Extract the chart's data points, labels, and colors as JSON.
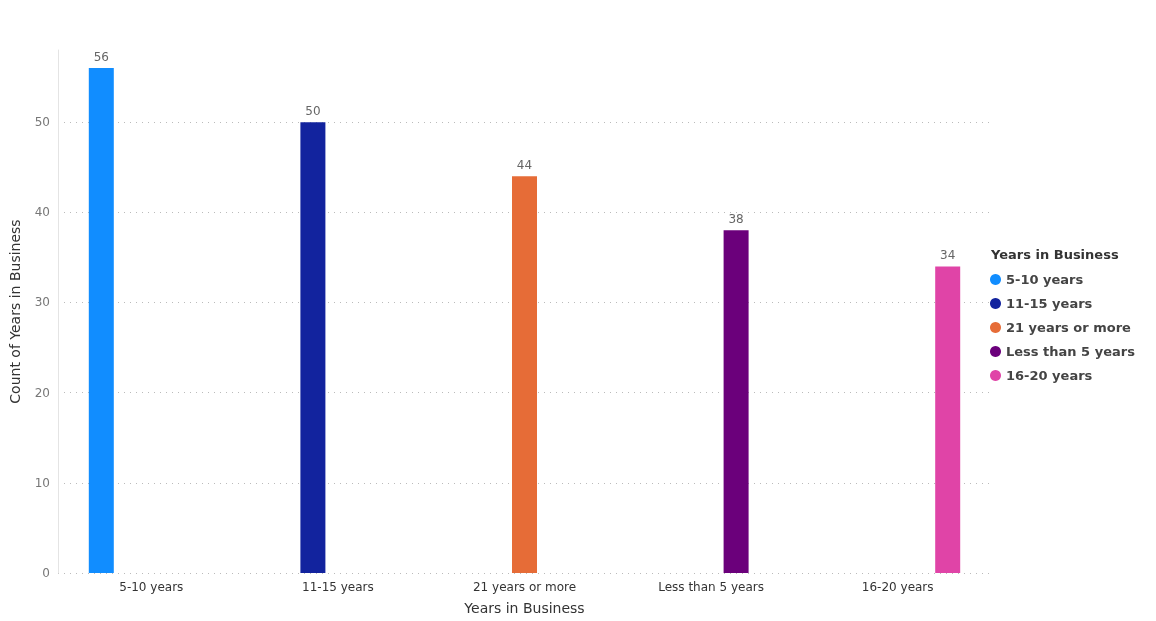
{
  "chart_data": {
    "type": "bar",
    "xlabel": "Years in Business",
    "ylabel": "Count of Years in Business",
    "legend_title": "Years in Business",
    "categories": [
      "5-10 years",
      "11-15 years",
      "21 years or more",
      "Less than 5 years",
      "16-20 years"
    ],
    "series": [
      {
        "name": "5-10 years",
        "color": "#118dff",
        "values": [
          56,
          null,
          null,
          null,
          null
        ]
      },
      {
        "name": "11-15 years",
        "color": "#12239e",
        "values": [
          null,
          50,
          null,
          null,
          null
        ]
      },
      {
        "name": "21 years or more",
        "color": "#e66c37",
        "values": [
          null,
          null,
          44,
          null,
          null
        ]
      },
      {
        "name": "Less than 5 years",
        "color": "#6b007b",
        "values": [
          null,
          null,
          null,
          38,
          null
        ]
      },
      {
        "name": "16-20 years",
        "color": "#e044a7",
        "values": [
          null,
          null,
          null,
          null,
          34
        ]
      }
    ],
    "ylim": [
      0,
      58
    ],
    "yticks": [
      0,
      10,
      20,
      30,
      40,
      50
    ],
    "grid": "y",
    "legend": "right",
    "data_labels": true
  }
}
